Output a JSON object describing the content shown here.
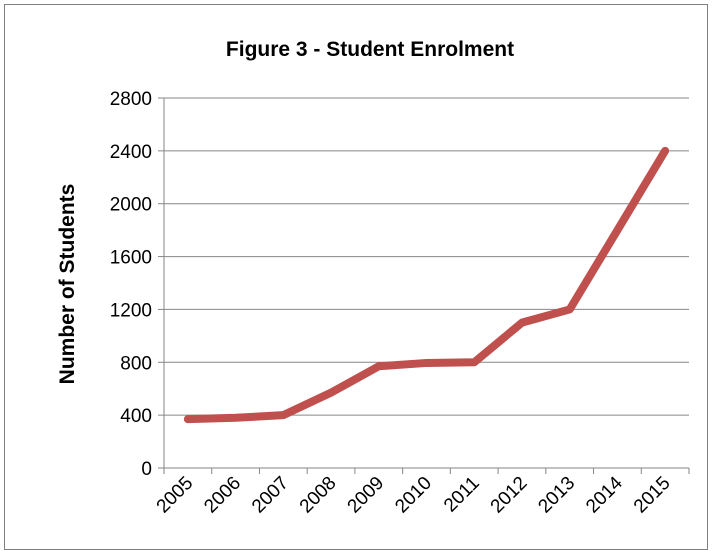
{
  "chart_data": {
    "type": "line",
    "title": "Figure 3 - Student Enrolment",
    "xlabel": "",
    "ylabel": "Number of Students",
    "categories": [
      "2005",
      "2006",
      "2007",
      "2008",
      "2009",
      "2010",
      "2011",
      "2012",
      "2013",
      "2014",
      "2015"
    ],
    "series": [
      {
        "values": [
          370,
          380,
          400,
          570,
          770,
          795,
          800,
          1100,
          1200,
          1800,
          2400
        ]
      }
    ],
    "ylim": [
      0,
      2800
    ],
    "yticks": [
      "0",
      "400",
      "800",
      "1200",
      "1600",
      "2000",
      "2400",
      "2800"
    ],
    "grid": true,
    "legend": "none",
    "line_color": "#c0504d",
    "gridline_color": "#868686"
  }
}
